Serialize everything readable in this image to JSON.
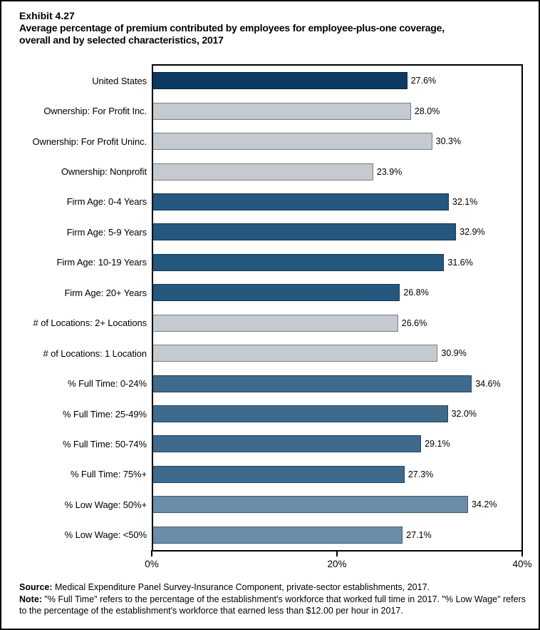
{
  "header": {
    "exhibit": "Exhibit 4.27",
    "title_line1": "Average percentage of premium contributed by employees for employee-plus-one coverage,",
    "title_line2": "overall and by selected characteristics, 2017"
  },
  "chart_data": {
    "type": "bar",
    "orientation": "horizontal",
    "title": "Average percentage of premium contributed by employees for employee-plus-one coverage, overall and by selected characteristics, 2017",
    "categories": [
      "United States",
      "Ownership: For Profit Inc.",
      "Ownership: For Profit Uninc.",
      "Ownership: Nonprofit",
      "Firm Age: 0-4 Years",
      "Firm Age: 5-9 Years",
      "Firm Age: 10-19 Years",
      "Firm Age: 20+ Years",
      "# of Locations: 2+ Locations",
      "# of Locations: 1 Location",
      "% Full Time: 0-24%",
      "% Full Time: 25-49%",
      "% Full Time: 50-74%",
      "% Full Time: 75%+",
      "% Low Wage: 50%+",
      "% Low Wage: <50%"
    ],
    "values": [
      27.6,
      28.0,
      30.3,
      23.9,
      32.1,
      32.9,
      31.6,
      26.8,
      26.6,
      30.9,
      34.6,
      32.0,
      29.1,
      27.3,
      34.2,
      27.1
    ],
    "value_labels": [
      "27.6%",
      "28.0%",
      "30.3%",
      "23.9%",
      "32.1%",
      "32.9%",
      "31.6%",
      "26.8%",
      "26.6%",
      "30.9%",
      "34.6%",
      "32.0%",
      "29.1%",
      "27.3%",
      "34.2%",
      "27.1%"
    ],
    "bar_colors": [
      "#0D3A63",
      "#C4CAD0",
      "#C4CAD0",
      "#C4CAD0",
      "#24587E",
      "#24587E",
      "#24587E",
      "#24587E",
      "#C4CAD0",
      "#C4CAD0",
      "#3E6A8D",
      "#3E6A8D",
      "#3E6A8D",
      "#3E6A8D",
      "#6C8DA9",
      "#6C8DA9"
    ],
    "xlim": [
      0,
      40
    ],
    "x_ticks": [
      "0%",
      "20%",
      "40%"
    ],
    "x_tick_values": [
      0,
      20,
      40
    ],
    "grid": false,
    "legend": "none"
  },
  "group_colors": {
    "united_states": "#0D3A63",
    "ownership": "#C4CAD0",
    "firm_age": "#24587E",
    "locations": "#C4CAD0",
    "full_time": "#3E6A8D",
    "low_wage": "#6C8DA9"
  },
  "footer": {
    "source_label": "Source:",
    "source_text": " Medical Expenditure Panel Survey-Insurance Component, private-sector establishments, 2017.",
    "note_label": "Note:",
    "note_text": " \"% Full Time\" refers to the percentage of the establishment's workforce that worked full time in 2017. \"% Low Wage\" refers to the percentage of the establishment's workforce that earned less than $12.00 per hour in 2017."
  }
}
